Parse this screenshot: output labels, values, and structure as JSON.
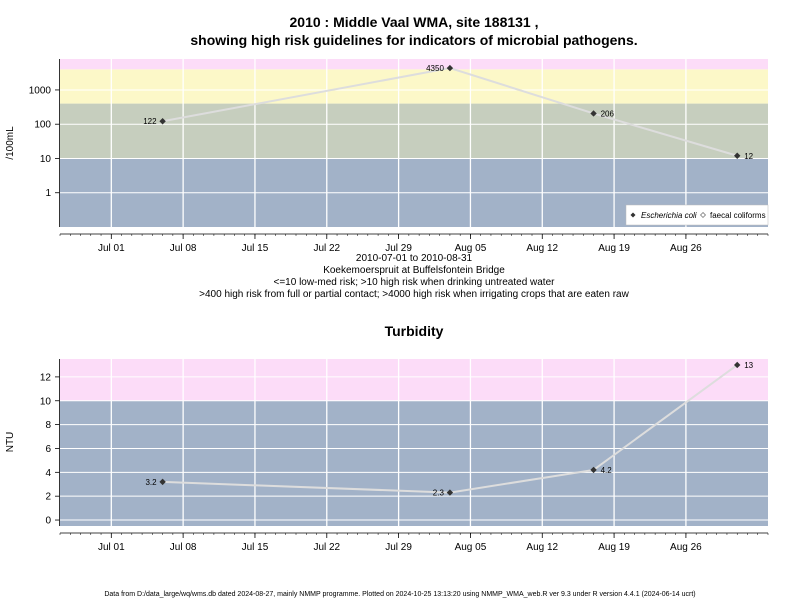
{
  "chart_data": [
    {
      "type": "line",
      "title_line1": "2010 : Middle Vaal WMA, site 188131 ,",
      "title_line2": "showing high risk guidelines for indicators of microbial pathogens.",
      "ylabel": "/100mL",
      "yscale": "log",
      "ylim": [
        0.1,
        8000
      ],
      "yticks": [
        1,
        10,
        100,
        1000
      ],
      "ytick_labels": [
        "1",
        "10",
        "100",
        "1000"
      ],
      "x_dates": [
        "2010-07-06",
        "2010-08-03",
        "2010-08-17",
        "2010-08-31"
      ],
      "xlim": [
        "2010-06-26",
        "2010-09-03"
      ],
      "xticks": [
        "2010-07-01",
        "2010-07-08",
        "2010-07-15",
        "2010-07-22",
        "2010-07-29",
        "2010-08-05",
        "2010-08-12",
        "2010-08-19",
        "2010-08-26"
      ],
      "xtick_labels": [
        "Jul 01",
        "Jul 08",
        "Jul 15",
        "Jul 22",
        "Jul 29",
        "Aug 05",
        "Aug 12",
        "Aug 19",
        "Aug 26"
      ],
      "series": [
        {
          "name": "Escherichia coli",
          "values": [
            122,
            4350,
            206,
            12
          ],
          "labels": [
            "122",
            "4350",
            "206",
            "12"
          ]
        },
        {
          "name": "faecal coliforms",
          "values": []
        }
      ],
      "bands": [
        {
          "from": 0.1,
          "to": 10,
          "color": "#a2b2c8"
        },
        {
          "from": 10,
          "to": 400,
          "color": "#c6cebe"
        },
        {
          "from": 400,
          "to": 4000,
          "color": "#fcf8c8"
        },
        {
          "from": 4000,
          "to": 8000,
          "color": "#fcdcf8"
        }
      ],
      "grid": true,
      "legend_position": "bottom-right",
      "caption": [
        "2010-07-01 to 2010-08-31",
        "Koekemoerspruit at Buffelsfontein Bridge",
        "<=10 low-med risk; >10 high risk when drinking untreated water",
        ">400 high risk from full or partial contact; >4000 high risk when irrigating crops that are eaten raw"
      ]
    },
    {
      "type": "line",
      "title": "Turbidity",
      "ylabel": "NTU",
      "ylim": [
        -0.5,
        13.5
      ],
      "yticks": [
        0,
        2,
        4,
        6,
        8,
        10,
        12
      ],
      "ytick_labels": [
        "0",
        "2",
        "4",
        "6",
        "8",
        "10",
        "12"
      ],
      "x_dates": [
        "2010-07-06",
        "2010-08-03",
        "2010-08-17",
        "2010-08-31"
      ],
      "xlim": [
        "2010-06-26",
        "2010-09-03"
      ],
      "xticks": [
        "2010-07-01",
        "2010-07-08",
        "2010-07-15",
        "2010-07-22",
        "2010-07-29",
        "2010-08-05",
        "2010-08-12",
        "2010-08-19",
        "2010-08-26"
      ],
      "xtick_labels": [
        "Jul 01",
        "Jul 08",
        "Jul 15",
        "Jul 22",
        "Jul 29",
        "Aug 05",
        "Aug 12",
        "Aug 19",
        "Aug 26"
      ],
      "series": [
        {
          "values": [
            3.2,
            2.3,
            4.2,
            13
          ],
          "labels": [
            "3.2",
            "2.3",
            "4.2",
            "13"
          ]
        }
      ],
      "bands": [
        {
          "from": -0.5,
          "to": 10,
          "color": "#a2b2c8"
        },
        {
          "from": 10,
          "to": 13.5,
          "color": "#fcdcf8"
        }
      ],
      "grid": true
    }
  ],
  "footer": "Data from D:/data_large/wq/wms.db dated 2024-08-27, mainly NMMP programme. Plotted on 2024-10-25 13:13:20 using NMMP_WMA_web.R ver 9.3 under R version 4.4.1 (2024-06-14 ucrt)"
}
